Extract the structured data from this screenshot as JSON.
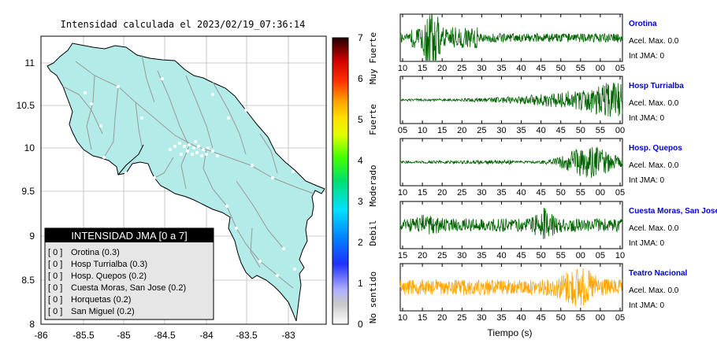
{
  "map": {
    "title": "Intensidad calculada el 2023/02/19_07:36:14",
    "lon_ticks": [
      "-86",
      "-85.5",
      "-85",
      "-84.5",
      "-84",
      "-83.5",
      "-83"
    ],
    "lat_ticks": [
      "11",
      "10.5",
      "10",
      "9.5",
      "9",
      "8.5",
      "8"
    ],
    "land_color": "#b3ebe9"
  },
  "colorbar": {
    "ticks": [
      "7",
      "6",
      "5",
      "4",
      "3",
      "2",
      "1",
      "0"
    ],
    "labels": [
      "Muy Fuerte",
      "Fuerte",
      "Moderado",
      "Debil",
      "No sentido"
    ]
  },
  "legend": {
    "title": "INTENSIDAD JMA [0 a 7]",
    "rows": [
      {
        "value": "[ 0 ]",
        "station": "Orotina (0.3)"
      },
      {
        "value": "[ 0 ]",
        "station": "Hosp Turrialba (0.3)"
      },
      {
        "value": "[ 0 ]",
        "station": "Hosp. Quepos (0.2)"
      },
      {
        "value": "[ 0 ]",
        "station": "Cuesta Moras, San Jose (0.2)"
      },
      {
        "value": "[ 0 ]",
        "station": "Horquetas (0.2)"
      },
      {
        "value": "[ 0 ]",
        "station": "San Miguel (0.2)"
      }
    ]
  },
  "traces": [
    {
      "name": "Orotina",
      "acel": "Acel. Max. 0.0",
      "jma": "Int JMA: 0",
      "color": "#006400",
      "ticks": [
        "10",
        "15",
        "20",
        "25",
        "30",
        "35",
        "40",
        "45",
        "50",
        "55",
        "00",
        "05"
      ]
    },
    {
      "name": "Hosp Turrialba",
      "acel": "Acel. Max. 0.0",
      "jma": "Int JMA: 0",
      "color": "#006400",
      "ticks": [
        "05",
        "10",
        "15",
        "20",
        "25",
        "30",
        "35",
        "40",
        "45",
        "50",
        "55",
        "00"
      ]
    },
    {
      "name": "Hosp. Quepos",
      "acel": "Acel. Max. 0.0",
      "jma": "Int JMA: 0",
      "color": "#006400",
      "ticks": [
        "10",
        "15",
        "20",
        "25",
        "30",
        "35",
        "40",
        "45",
        "50",
        "55",
        "00",
        "05"
      ]
    },
    {
      "name": "Cuesta Moras, San Jose",
      "acel": "Acel. Max. 0.0",
      "jma": "Int JMA: 0",
      "color": "#006400",
      "ticks": [
        "15",
        "20",
        "25",
        "30",
        "35",
        "40",
        "45",
        "50",
        "55",
        "00",
        "05",
        "10"
      ]
    },
    {
      "name": "Teatro Nacional",
      "acel": "Acel. Max. 0.0",
      "jma": "Int JMA: 0",
      "color": "#ffa500",
      "ticks": [
        "10",
        "15",
        "20",
        "25",
        "30",
        "35",
        "40",
        "45",
        "50",
        "55",
        "00",
        "05"
      ]
    }
  ],
  "time_axis_label": "Tiempo (s)"
}
